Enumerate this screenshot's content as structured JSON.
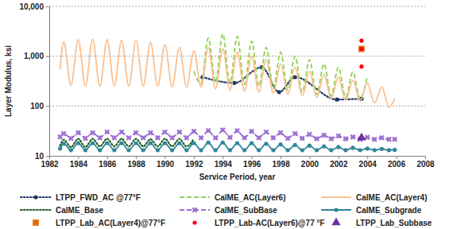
{
  "chart_data": {
    "type": "line",
    "x_label": "Service Period, year",
    "y_label": "Layer Modulus, ksi",
    "log": "y",
    "grid": true,
    "legend": "bottom",
    "xlim": [
      1982,
      2008
    ],
    "xticks": [
      1982,
      1984,
      1986,
      1988,
      1990,
      1992,
      1994,
      1996,
      1998,
      2000,
      2002,
      2004,
      2006,
      2008
    ],
    "ylim": [
      10,
      10000
    ],
    "yticks": [
      10,
      100,
      {
        "value": 1000,
        "label": "1,000"
      },
      {
        "value": 10000,
        "label": "10,000"
      }
    ],
    "series": [
      {
        "name": "LTPP_FWD_AC @77°F",
        "type": "line",
        "color": "#1f3864",
        "line_style": "dotted",
        "marker": "circle",
        "x": [
          1992.6,
          1994.8,
          1996.7,
          1997.9,
          1999.0,
          2001.9,
          2003.6
        ],
        "values": [
          380,
          290,
          600,
          190,
          380,
          135,
          140
        ]
      },
      {
        "name": "CalME_AC(Layer6)",
        "type": "line",
        "color": "#92d050",
        "line_style": "dashed",
        "x": [
          1992.0,
          1992.5,
          1993.0,
          1993.5,
          1994.0,
          1994.5,
          1995.0,
          1995.5,
          1996.0,
          1996.5,
          1997.0,
          1997.5,
          1998.0,
          1998.5,
          1999.0,
          1999.5,
          2000.0,
          2000.5,
          2001.0,
          2001.5,
          2002.0,
          2002.5,
          2003.0,
          2003.5,
          2004.0
        ],
        "values": [
          500,
          280,
          2300,
          300,
          2800,
          290,
          2500,
          270,
          2000,
          250,
          1500,
          230,
          1200,
          210,
          1000,
          190,
          850,
          170,
          700,
          160,
          600,
          150,
          480,
          140,
          400
        ]
      },
      {
        "name": "CalME_AC(Layer4)",
        "type": "line",
        "color": "#fac090",
        "line_style": "solid",
        "x": [
          1982.75,
          1983.0,
          1983.5,
          1984.0,
          1984.5,
          1985.0,
          1985.5,
          1986.0,
          1986.5,
          1987.0,
          1987.5,
          1988.0,
          1988.5,
          1989.0,
          1989.5,
          1990.0,
          1990.5,
          1991.0,
          1991.5,
          1992.0,
          1992.5,
          1993.0,
          1993.5,
          1994.0,
          1994.5,
          1995.0,
          1995.5,
          1996.0,
          1996.5,
          1997.0,
          1997.5,
          1998.0,
          1998.5,
          1999.0,
          1999.5,
          2000.0,
          2000.5,
          2001.0,
          2001.5,
          2002.0,
          2002.5,
          2003.0,
          2003.5,
          2004.0,
          2004.5,
          2005.0,
          2005.5,
          2005.9
        ],
        "values": [
          550,
          1950,
          260,
          2150,
          250,
          2200,
          250,
          2150,
          250,
          2100,
          250,
          2050,
          250,
          1900,
          250,
          1700,
          240,
          1500,
          240,
          1300,
          240,
          1500,
          220,
          1400,
          210,
          1200,
          200,
          1000,
          190,
          850,
          180,
          700,
          170,
          600,
          160,
          500,
          150,
          430,
          140,
          380,
          130,
          330,
          125,
          290,
          115,
          240,
          95,
          140
        ]
      },
      {
        "name": "CalME_Base",
        "type": "line",
        "color": "#1e5a1e",
        "line_style": "dotted",
        "x": [
          1982.75,
          1983.0,
          1983.5,
          1984.0,
          1984.5,
          1985.0,
          1985.5,
          1986.0,
          1986.5,
          1987.0,
          1987.5,
          1988.0,
          1988.5,
          1989.0,
          1989.5,
          1990.0,
          1990.5,
          1991.0,
          1991.5,
          1992.0
        ],
        "values": [
          16,
          21,
          15,
          22,
          15,
          22,
          15.5,
          22,
          15.5,
          22,
          15.5,
          22,
          15.5,
          21.5,
          15.5,
          22,
          15.5,
          22,
          15.5,
          22
        ]
      },
      {
        "name": "CalME_SubBase",
        "type": "line",
        "color": "#9b6fd0",
        "line_style": "dashed",
        "marker": "x",
        "x": [
          1982.75,
          1983.0,
          1983.5,
          1984.0,
          1984.5,
          1985.0,
          1985.5,
          1986.0,
          1986.5,
          1987.0,
          1987.5,
          1988.0,
          1988.5,
          1989.0,
          1989.5,
          1990.0,
          1990.5,
          1991.0,
          1991.5,
          1992.0,
          1992.5,
          1993.0,
          1993.5,
          1994.0,
          1994.5,
          1995.0,
          1995.5,
          1996.0,
          1996.5,
          1997.0,
          1997.5,
          1998.0,
          1998.5,
          1999.0,
          1999.5,
          2000.0,
          2000.5,
          2001.0,
          2001.5,
          2002.0,
          2002.5,
          2003.0,
          2003.5,
          2004.0,
          2004.5,
          2005.0,
          2005.5,
          2005.9
        ],
        "values": [
          24,
          28,
          22.5,
          29,
          22.5,
          29,
          23,
          30,
          23,
          30,
          23,
          29,
          23,
          29,
          23,
          30,
          23,
          30,
          23,
          31,
          23,
          32,
          23,
          33,
          23.5,
          32,
          23,
          31,
          23,
          30,
          23,
          29,
          22.5,
          28,
          22.5,
          27,
          22,
          26,
          22,
          25,
          22,
          24,
          21.5,
          23.5,
          21.5,
          23,
          21.5,
          21.5
        ]
      },
      {
        "name": "CalME_Subgrade",
        "type": "line",
        "color": "#31859c",
        "line_style": "solid",
        "marker": "circle",
        "x": [
          1982.75,
          1983.0,
          1983.5,
          1984.0,
          1984.5,
          1985.0,
          1985.5,
          1986.0,
          1986.5,
          1987.0,
          1987.5,
          1988.0,
          1988.5,
          1989.0,
          1989.5,
          1990.0,
          1990.5,
          1991.0,
          1991.5,
          1992.0,
          1992.5,
          1993.0,
          1993.5,
          1994.0,
          1994.5,
          1995.0,
          1995.5,
          1996.0,
          1996.5,
          1997.0,
          1997.5,
          1998.0,
          1998.5,
          1999.0,
          1999.5,
          2000.0,
          2000.5,
          2001.0,
          2001.5,
          2002.0,
          2002.5,
          2003.0,
          2003.5,
          2004.0,
          2004.5,
          2005.0,
          2005.5,
          2005.9
        ],
        "values": [
          14,
          17.5,
          13,
          18,
          13,
          18,
          13,
          18,
          13,
          18,
          13,
          18,
          13,
          18,
          13,
          18,
          13,
          18,
          13,
          18,
          13,
          18.5,
          13,
          18.5,
          13,
          18,
          13,
          18,
          13,
          17.5,
          13,
          17,
          13,
          16.5,
          13,
          16,
          13,
          15.5,
          13,
          15,
          13,
          14.5,
          13,
          14,
          13,
          13.8,
          13,
          13.2
        ]
      },
      {
        "name": "LTPP_Lab_AC(Layer4)@77°F",
        "type": "scatter",
        "color": "#e46c0a",
        "marker": "square",
        "x": [
          2003.6
        ],
        "values": [
          1400
        ]
      },
      {
        "name": "LTPP_Lab-AC(Layer6)@77 °F",
        "type": "scatter",
        "color": "#ff0000",
        "marker": "circle",
        "x": [
          2003.6,
          2003.6,
          2003.6
        ],
        "values": [
          2050,
          1400,
          620
        ]
      },
      {
        "name": "LTPP_Lab_Subbase",
        "type": "scatter",
        "color": "#7030a0",
        "marker": "triangle",
        "x": [
          2003.6
        ],
        "values": [
          23
        ]
      }
    ]
  }
}
